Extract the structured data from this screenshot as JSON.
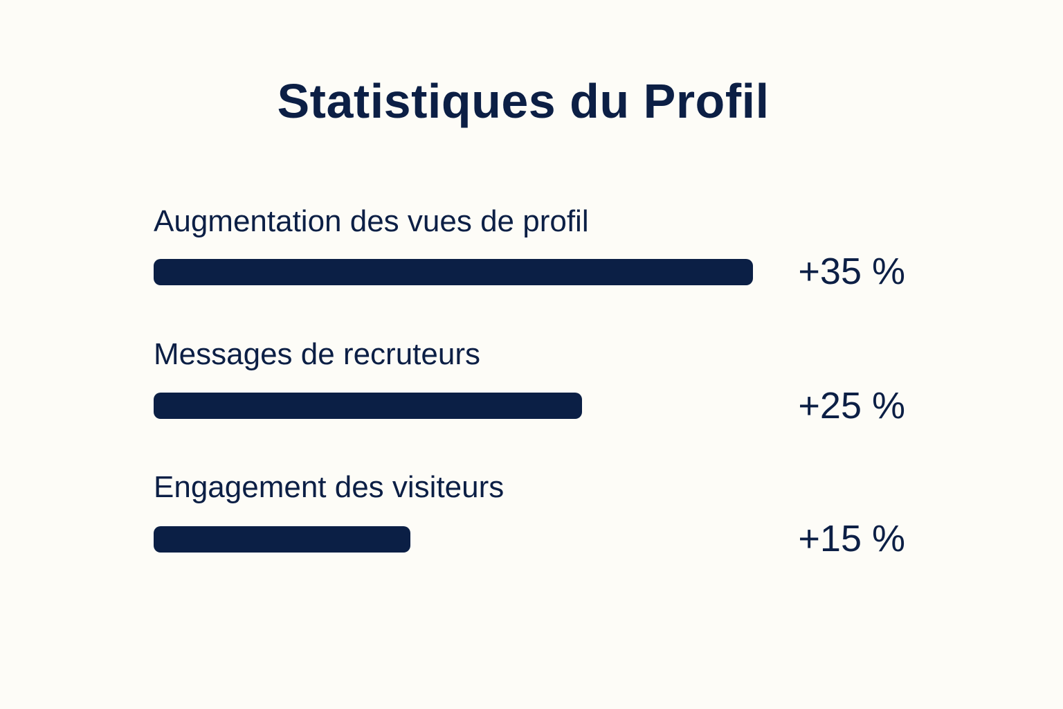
{
  "chart_data": {
    "type": "bar",
    "orientation": "horizontal",
    "title": "Statistiques du Profil",
    "xlim": [
      0,
      35
    ],
    "grid": false,
    "bar_color": "#0b1f45",
    "categories": [
      "Augmentation des vues de profil",
      "Messages de recruteurs",
      "Engagement des visiteurs"
    ],
    "values": [
      35,
      25,
      15
    ],
    "value_labels": [
      "+35 %",
      "+25 %",
      "+15 %"
    ]
  }
}
